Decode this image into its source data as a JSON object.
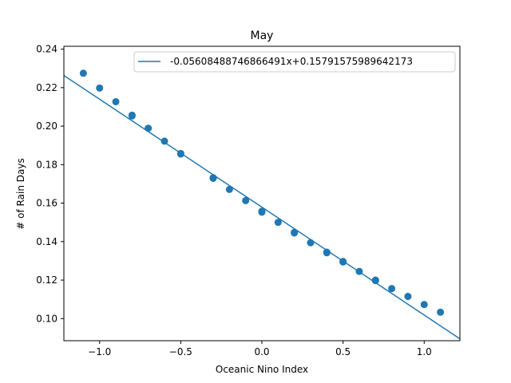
{
  "chart_data": {
    "type": "scatter",
    "title": "May",
    "xlabel": "Oceanic Nino Index",
    "ylabel": "# of Rain Days",
    "xlim": [
      -1.22,
      1.22
    ],
    "ylim": [
      0.0885,
      0.2415
    ],
    "xticks": [
      -1.0,
      -0.5,
      0.0,
      0.5,
      1.0
    ],
    "xtick_labels": [
      "−1.0",
      "−0.5",
      "0.0",
      "0.5",
      "1.0"
    ],
    "yticks": [
      0.1,
      0.12,
      0.14,
      0.16,
      0.18,
      0.2,
      0.22,
      0.24
    ],
    "ytick_labels": [
      "0.10",
      "0.12",
      "0.14",
      "0.16",
      "0.18",
      "0.20",
      "0.22",
      "0.24"
    ],
    "grid": false,
    "legend_position": "top-right",
    "series": [
      {
        "kind": "scatter",
        "color": "#1f77b4",
        "x": [
          -1.1,
          -1.0,
          -0.9,
          -0.8,
          -0.8,
          -0.7,
          -0.6,
          -0.5,
          -0.5,
          -0.3,
          -0.3,
          -0.2,
          -0.1,
          0.0,
          0.0,
          0.1,
          0.2,
          0.2,
          0.3,
          0.4,
          0.4,
          0.5,
          0.5,
          0.6,
          0.7,
          0.7,
          0.8,
          0.9,
          1.0,
          1.1
        ],
        "y": [
          0.2275,
          0.2198,
          0.2127,
          0.2057,
          0.2053,
          0.1989,
          0.1922,
          0.1858,
          0.1855,
          0.1732,
          0.1729,
          0.1671,
          0.1613,
          0.1558,
          0.1553,
          0.15,
          0.1448,
          0.1445,
          0.1394,
          0.1345,
          0.1342,
          0.1297,
          0.1294,
          0.1245,
          0.12,
          0.1197,
          0.1156,
          0.1115,
          0.1073,
          0.1033
        ]
      },
      {
        "kind": "line",
        "name": "-0.05608488746866491x+0.15791575989642173",
        "color": "#1f77b4",
        "slope": -0.05608488746866491,
        "intercept": 0.15791575989642173,
        "x_range": [
          -1.22,
          1.22
        ]
      }
    ]
  }
}
